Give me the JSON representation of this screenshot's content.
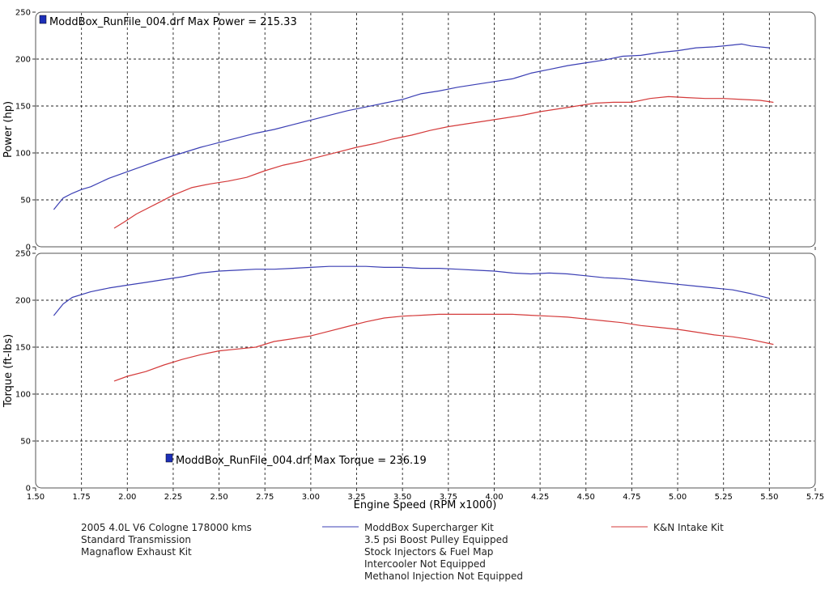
{
  "chart_data": [
    {
      "type": "line",
      "ylabel": "Power (hp)",
      "ylim": [
        0,
        250
      ],
      "yticks": [
        "0",
        "50",
        "100",
        "150",
        "200",
        "250"
      ],
      "grid": true,
      "annotation": "ModdBox_RunFile_004.drf Max Power = 215.33",
      "series": [
        {
          "name": "ModdBox Supercharger Kit",
          "color": "#3b3fb4",
          "x": [
            1.6,
            1.65,
            1.7,
            1.75,
            1.8,
            1.9,
            2.0,
            2.1,
            2.2,
            2.3,
            2.4,
            2.5,
            2.6,
            2.7,
            2.8,
            2.9,
            3.0,
            3.1,
            3.2,
            3.3,
            3.4,
            3.5,
            3.6,
            3.7,
            3.8,
            3.9,
            4.0,
            4.1,
            4.2,
            4.3,
            4.4,
            4.5,
            4.6,
            4.7,
            4.8,
            4.9,
            5.0,
            5.1,
            5.2,
            5.3,
            5.35,
            5.4,
            5.5
          ],
          "values": [
            40,
            52,
            57,
            61,
            64,
            73,
            80,
            87,
            94,
            100,
            106,
            111,
            116,
            121,
            125,
            130,
            135,
            140,
            145,
            149,
            153,
            157,
            163,
            166,
            170,
            173,
            176,
            179,
            185,
            189,
            193,
            196,
            199,
            203,
            204,
            207,
            209,
            212,
            213,
            215,
            216,
            214,
            212
          ]
        },
        {
          "name": "K&N Intake Kit",
          "color": "#d43a3a",
          "x": [
            1.93,
            1.98,
            2.05,
            2.15,
            2.25,
            2.35,
            2.45,
            2.55,
            2.65,
            2.75,
            2.85,
            2.95,
            3.05,
            3.15,
            3.25,
            3.35,
            3.45,
            3.55,
            3.65,
            3.75,
            3.85,
            3.95,
            4.05,
            4.15,
            4.25,
            4.35,
            4.45,
            4.55,
            4.65,
            4.75,
            4.85,
            4.95,
            5.05,
            5.15,
            5.25,
            5.35,
            5.45,
            5.52
          ],
          "values": [
            20,
            26,
            35,
            45,
            55,
            63,
            67,
            70,
            74,
            81,
            87,
            91,
            96,
            101,
            106,
            110,
            115,
            119,
            124,
            128,
            131,
            134,
            137,
            140,
            144,
            147,
            150,
            153,
            154,
            154,
            158,
            160,
            159,
            158,
            158,
            157,
            156,
            154
          ]
        }
      ]
    },
    {
      "type": "line",
      "xlabel": "Engine Speed (RPM x1000)",
      "ylabel": "Torque (ft-lbs)",
      "xlim": [
        1.5,
        5.75
      ],
      "ylim": [
        0,
        250
      ],
      "xticks": [
        "1.50",
        "1.75",
        "2.00",
        "2.25",
        "2.50",
        "2.75",
        "3.00",
        "3.25",
        "3.50",
        "3.75",
        "4.00",
        "4.25",
        "4.50",
        "4.75",
        "5.00",
        "5.25",
        "5.50",
        "5.75"
      ],
      "yticks": [
        "0",
        "50",
        "100",
        "150",
        "200",
        "250"
      ],
      "grid": true,
      "annotation": "ModdBox_RunFile_004.drf Max Torque = 236.19",
      "series": [
        {
          "name": "ModdBox Supercharger Kit",
          "color": "#3b3fb4",
          "x": [
            1.6,
            1.65,
            1.7,
            1.8,
            1.9,
            2.0,
            2.1,
            2.2,
            2.3,
            2.4,
            2.5,
            2.6,
            2.7,
            2.8,
            2.9,
            3.0,
            3.1,
            3.2,
            3.3,
            3.4,
            3.5,
            3.6,
            3.7,
            3.8,
            3.9,
            4.0,
            4.1,
            4.2,
            4.3,
            4.4,
            4.5,
            4.6,
            4.7,
            4.8,
            4.9,
            5.0,
            5.1,
            5.2,
            5.3,
            5.4,
            5.5
          ],
          "values": [
            184,
            196,
            203,
            209,
            213,
            216,
            219,
            222,
            225,
            229,
            231,
            232,
            233,
            233,
            234,
            235,
            236,
            236,
            236,
            235,
            235,
            234,
            234,
            233,
            232,
            231,
            229,
            228,
            229,
            228,
            226,
            224,
            223,
            221,
            219,
            217,
            215,
            213,
            211,
            207,
            202
          ]
        },
        {
          "name": "K&N Intake Kit",
          "color": "#d43a3a",
          "x": [
            1.93,
            2.0,
            2.1,
            2.2,
            2.3,
            2.4,
            2.5,
            2.6,
            2.7,
            2.8,
            2.9,
            3.0,
            3.1,
            3.2,
            3.3,
            3.4,
            3.5,
            3.6,
            3.7,
            3.8,
            3.9,
            4.0,
            4.1,
            4.2,
            4.3,
            4.4,
            4.5,
            4.6,
            4.7,
            4.8,
            4.9,
            5.0,
            5.1,
            5.2,
            5.3,
            5.4,
            5.52
          ],
          "values": [
            114,
            119,
            124,
            131,
            137,
            142,
            146,
            148,
            150,
            156,
            159,
            162,
            167,
            172,
            177,
            181,
            183,
            184,
            185,
            185,
            185,
            185,
            185,
            184,
            183,
            182,
            180,
            178,
            176,
            173,
            171,
            169,
            166,
            163,
            161,
            158,
            153
          ]
        }
      ]
    }
  ],
  "notes": {
    "col1": [
      "2005 4.0L V6 Cologne 178000 kms",
      "Standard Transmission",
      "Magnaflow Exhaust Kit"
    ],
    "series1_label": "ModdBox Supercharger Kit",
    "series1_details": [
      "3.5 psi Boost Pulley Equipped",
      "Stock Injectors & Fuel Map",
      "Intercooler Not Equipped",
      "Methanol Injection Not Equipped"
    ],
    "series2_label": "K&N Intake Kit"
  }
}
